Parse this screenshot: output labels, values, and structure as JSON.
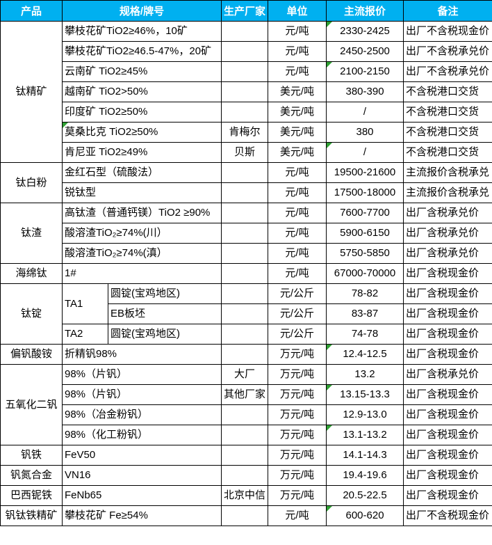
{
  "colors": {
    "header_bg": "#00B0F0",
    "header_text": "#FFFFFF",
    "grid_line": "#000000",
    "indicator_green": "#2FA033"
  },
  "header": {
    "columns": [
      "产品",
      "规格/牌号",
      "生产厂家",
      "单位",
      "主流报价",
      "备注"
    ]
  },
  "rows": [
    {
      "product": "钛精矿",
      "product_rowspan": 7,
      "spec": "攀枝花矿TiO2≥46%，10矿",
      "spec_colspan": 2,
      "mfr": "",
      "unit": "元/吨",
      "price": "2330-2425",
      "price_mark": true,
      "remark": "出厂不含税现金价"
    },
    {
      "spec": "攀枝花矿TiO2≥46.5-47%，20矿",
      "spec_colspan": 2,
      "mfr": "",
      "unit": "元/吨",
      "price": "2450-2500",
      "remark": "出厂不含税承兑价"
    },
    {
      "spec": "云南矿 TiO2≥45%",
      "spec_colspan": 2,
      "mfr": "",
      "unit": "元/吨",
      "price": "2100-2150",
      "price_mark": true,
      "remark": "出厂不含税承兑价"
    },
    {
      "spec": "越南矿 TiO2>50%",
      "spec_colspan": 2,
      "mfr": "",
      "unit": "美元/吨",
      "price": "380-390",
      "remark": "不含税港口交货"
    },
    {
      "spec": "印度矿 TiO2≥50%",
      "spec_colspan": 2,
      "mfr": "",
      "unit": "美元/吨",
      "price": "/",
      "remark": "不含税港口交货"
    },
    {
      "spec": "莫桑比克 TiO2≥50%",
      "spec_colspan": 2,
      "spec_mark": true,
      "mfr": "肯梅尔",
      "unit": "美元/吨",
      "price": "380",
      "remark": "不含税港口交货"
    },
    {
      "spec": "肯尼亚 TiO2≥49%",
      "spec_colspan": 2,
      "mfr": "贝斯",
      "unit": "美元/吨",
      "price": "/",
      "price_mark": true,
      "remark": "不含税港口交货"
    },
    {
      "product": "钛白粉",
      "product_rowspan": 2,
      "spec": "金红石型（硫酸法）",
      "spec_colspan": 2,
      "mfr": "",
      "unit": "元/吨",
      "price": "19500-21600",
      "remark": "主流报价含税承兑"
    },
    {
      "spec": "锐钛型",
      "spec_colspan": 2,
      "mfr": "",
      "unit": "元/吨",
      "price": "17500-18000",
      "remark": "主流报价含税承兑"
    },
    {
      "product": "钛渣",
      "product_rowspan": 3,
      "spec": "高钛渣（普通钙镁）TiO2 ≥90%",
      "spec_colspan": 2,
      "mfr": "",
      "unit": "元/吨",
      "price": "7600-7700",
      "remark": "出厂含税承兑价"
    },
    {
      "spec": "酸溶渣TiO₂≥74%(川）",
      "spec_colspan": 2,
      "mfr": "",
      "unit": "元/吨",
      "price": "5900-6150",
      "remark": "出厂含税承兑价"
    },
    {
      "spec": "酸溶渣TiO₂≥74%(滇）",
      "spec_colspan": 2,
      "mfr": "",
      "unit": "元/吨",
      "price": "5750-5850",
      "remark": "出厂含税承兑价"
    },
    {
      "product": "海绵钛",
      "product_rowspan": 1,
      "spec": "1#",
      "spec_colspan": 2,
      "mfr": "",
      "unit": "元/吨",
      "price": "67000-70000",
      "remark": "出厂含税现金价"
    },
    {
      "product": "钛锭",
      "product_rowspan": 3,
      "spec": "TA1",
      "spec_rowspan": 2,
      "spec2": "圆锭(宝鸡地区)",
      "mfr": "",
      "unit": "元/公斤",
      "price": "78-82",
      "remark": "出厂含税现金价"
    },
    {
      "spec2": "EB板坯",
      "mfr": "",
      "unit": "元/公斤",
      "price": "83-87",
      "remark": "出厂含税现金价"
    },
    {
      "spec": "TA2",
      "spec_rowspan": 1,
      "spec2": "圆锭(宝鸡地区)",
      "mfr": "",
      "unit": "元/公斤",
      "price": "74-78",
      "remark": "出厂含税现金价"
    },
    {
      "product": "偏钒酸铵",
      "product_rowspan": 1,
      "spec": "折精钒98%",
      "spec_colspan": 2,
      "mfr": "",
      "unit": "万元/吨",
      "price": "12.4-12.5",
      "price_mark": true,
      "remark": "出厂含税现金价"
    },
    {
      "product": "五氧化二钒",
      "product_rowspan": 4,
      "spec": "98%（片钒）",
      "spec_colspan": 2,
      "mfr": "大厂",
      "unit": "万元/吨",
      "price": "13.2",
      "remark": "出厂含税承兑价"
    },
    {
      "spec": "98%（片钒）",
      "spec_colspan": 2,
      "mfr": "其他厂家",
      "unit": "万元/吨",
      "price": "13.15-13.3",
      "price_mark": true,
      "remark": "出厂含税现金价"
    },
    {
      "spec": "98%（冶金粉钒）",
      "spec_colspan": 2,
      "mfr": "",
      "unit": "万元/吨",
      "price": "12.9-13.0",
      "remark": "出厂含税现金价"
    },
    {
      "spec": "98%（化工粉钒）",
      "spec_colspan": 2,
      "mfr": "",
      "unit": "万元/吨",
      "price": "13.1-13.2",
      "price_mark": true,
      "remark": "出厂含税现金价"
    },
    {
      "product": "钒铁",
      "product_rowspan": 1,
      "spec": "FeV50",
      "spec_colspan": 2,
      "mfr": "",
      "unit": "万元/吨",
      "price": "14.1-14.3",
      "remark": "出厂含税现金价"
    },
    {
      "product": "钒氮合金",
      "product_rowspan": 1,
      "spec": "VN16",
      "spec_colspan": 2,
      "mfr": "",
      "unit": "万元/吨",
      "price": "19.4-19.6",
      "remark": "出厂含税现金价"
    },
    {
      "product": "巴西铌铁",
      "product_rowspan": 1,
      "spec": "FeNb65",
      "spec_colspan": 2,
      "mfr": "北京中信",
      "unit": "万元/吨",
      "price": "20.5-22.5",
      "remark": "出厂含税现金价"
    },
    {
      "product": "钒钛铁精矿",
      "product_rowspan": 1,
      "spec": "攀枝花矿 Fe≥54%",
      "spec_colspan": 2,
      "mfr": "",
      "unit": "元/吨",
      "price": "600-620",
      "price_mark": true,
      "remark": "出厂不含税现金价"
    }
  ]
}
